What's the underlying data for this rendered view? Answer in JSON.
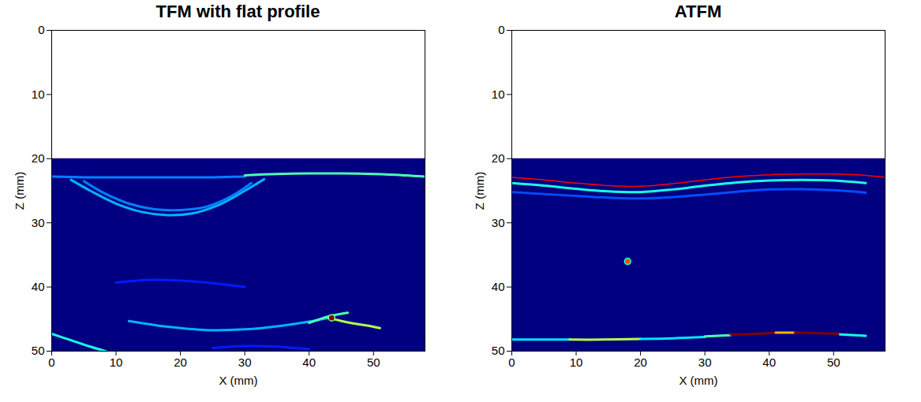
{
  "chart_data": [
    {
      "type": "heatmap",
      "title": "TFM with flat profile",
      "x_label": "X (mm)",
      "y_label": "Z (mm)",
      "xlim": [
        0,
        58
      ],
      "ylim": [
        0,
        50
      ],
      "xticks": [
        0,
        10,
        20,
        30,
        40,
        50
      ],
      "yticks": [
        0,
        10,
        20,
        30,
        40,
        50
      ],
      "image_z_range": [
        20,
        50
      ],
      "amplitude_range": [
        0,
        1
      ],
      "echoes": [
        {
          "x": [
            0,
            5,
            10,
            15,
            20,
            25,
            30
          ],
          "z": [
            22.8,
            22.9,
            22.9,
            22.9,
            22.9,
            22.9,
            22.8
          ],
          "amplitude": 0.25
        },
        {
          "x": [
            30,
            35,
            40,
            45,
            50,
            55,
            58
          ],
          "z": [
            22.6,
            22.4,
            22.3,
            22.3,
            22.4,
            22.6,
            22.8
          ],
          "amplitude": 0.45
        },
        {
          "x": [
            3,
            6,
            10,
            14,
            18,
            22,
            26,
            30,
            33
          ],
          "z": [
            23.3,
            25,
            27,
            28.3,
            28.8,
            28.5,
            27.2,
            25,
            23.2
          ],
          "amplitude": 0.3
        },
        {
          "x": [
            5,
            8,
            12,
            16,
            20,
            24,
            28,
            31
          ],
          "z": [
            23.5,
            25.3,
            27,
            27.9,
            28,
            27.5,
            25.8,
            23.8
          ],
          "amplitude": 0.25
        },
        {
          "x": [
            10,
            15,
            20,
            25,
            30
          ],
          "z": [
            39.3,
            38.9,
            39,
            39.4,
            40
          ],
          "amplitude": 0.15
        },
        {
          "x": [
            12,
            18,
            24,
            30,
            36,
            40,
            43
          ],
          "z": [
            45.3,
            46.2,
            46.7,
            46.6,
            46,
            45.4,
            44.8
          ],
          "amplitude": 0.3
        },
        {
          "x": [
            43,
            45,
            47,
            49,
            51
          ],
          "z": [
            44.8,
            45.3,
            45.7,
            46,
            46.4
          ],
          "amplitude": 0.55
        },
        {
          "x": [
            40,
            43,
            46
          ],
          "z": [
            45.6,
            44.6,
            44
          ],
          "amplitude": 0.45
        },
        {
          "x": [
            0,
            3,
            6,
            9
          ],
          "z": [
            47.3,
            48.3,
            49.3,
            50.2
          ],
          "amplitude": 0.4
        },
        {
          "x": [
            25,
            30,
            35,
            40
          ],
          "z": [
            49.5,
            49.2,
            49.3,
            49.7
          ],
          "amplitude": 0.15
        }
      ],
      "spots": [
        {
          "x": 43.5,
          "z": 44.8,
          "amplitude": 1
        }
      ]
    },
    {
      "type": "heatmap",
      "title": "ATFM",
      "x_label": "X (mm)",
      "y_label": "Z (mm)",
      "xlim": [
        0,
        58
      ],
      "ylim": [
        0,
        50
      ],
      "xticks": [
        0,
        10,
        20,
        30,
        40,
        50
      ],
      "yticks": [
        0,
        10,
        20,
        30,
        40,
        50
      ],
      "image_z_range": [
        20,
        50
      ],
      "amplitude_range": [
        0,
        1
      ],
      "echoes": [
        {
          "x": [
            0,
            5,
            10,
            15,
            20,
            25,
            30,
            35,
            40,
            45,
            50,
            55
          ],
          "z": [
            23.8,
            24.2,
            24.7,
            25.1,
            25.2,
            24.8,
            24.2,
            23.7,
            23.4,
            23.3,
            23.4,
            23.8
          ],
          "amplitude": 0.4
        },
        {
          "x": [
            0,
            10,
            20,
            30,
            40,
            50,
            55
          ],
          "z": [
            25.2,
            25.8,
            26.2,
            25.6,
            24.8,
            24.9,
            25.3
          ],
          "amplitude": 0.2
        },
        {
          "x": [
            0,
            5,
            9
          ],
          "z": [
            48.2,
            48.2,
            48.2
          ],
          "amplitude": 0.35
        },
        {
          "x": [
            9,
            14,
            20
          ],
          "z": [
            48.2,
            48.2,
            48.1
          ],
          "amplitude": 0.55
        },
        {
          "x": [
            20,
            25,
            30
          ],
          "z": [
            48.1,
            48,
            47.8
          ],
          "amplitude": 0.35
        },
        {
          "x": [
            30,
            34
          ],
          "z": [
            47.7,
            47.5
          ],
          "amplitude": 0.45
        },
        {
          "x": [
            34,
            38,
            41
          ],
          "z": [
            47.4,
            47.3,
            47.1
          ],
          "amplitude": 1
        },
        {
          "x": [
            41,
            44
          ],
          "z": [
            47.1,
            47.1
          ],
          "amplitude": 0.7
        },
        {
          "x": [
            44,
            48,
            51
          ],
          "z": [
            47.1,
            47.2,
            47.3
          ],
          "amplitude": 1
        },
        {
          "x": [
            51,
            55
          ],
          "z": [
            47.4,
            47.6
          ],
          "amplitude": 0.4
        }
      ],
      "spots": [
        {
          "x": 18,
          "z": 36,
          "amplitude": 0.8
        }
      ],
      "profile": {
        "color": "#ff0000",
        "x": [
          0,
          5,
          10,
          15,
          20,
          25,
          30,
          35,
          40,
          45,
          50,
          55,
          58
        ],
        "z": [
          22.9,
          23.3,
          23.8,
          24.2,
          24.3,
          23.9,
          23.3,
          22.8,
          22.5,
          22.4,
          22.4,
          22.6,
          22.9
        ]
      }
    }
  ]
}
